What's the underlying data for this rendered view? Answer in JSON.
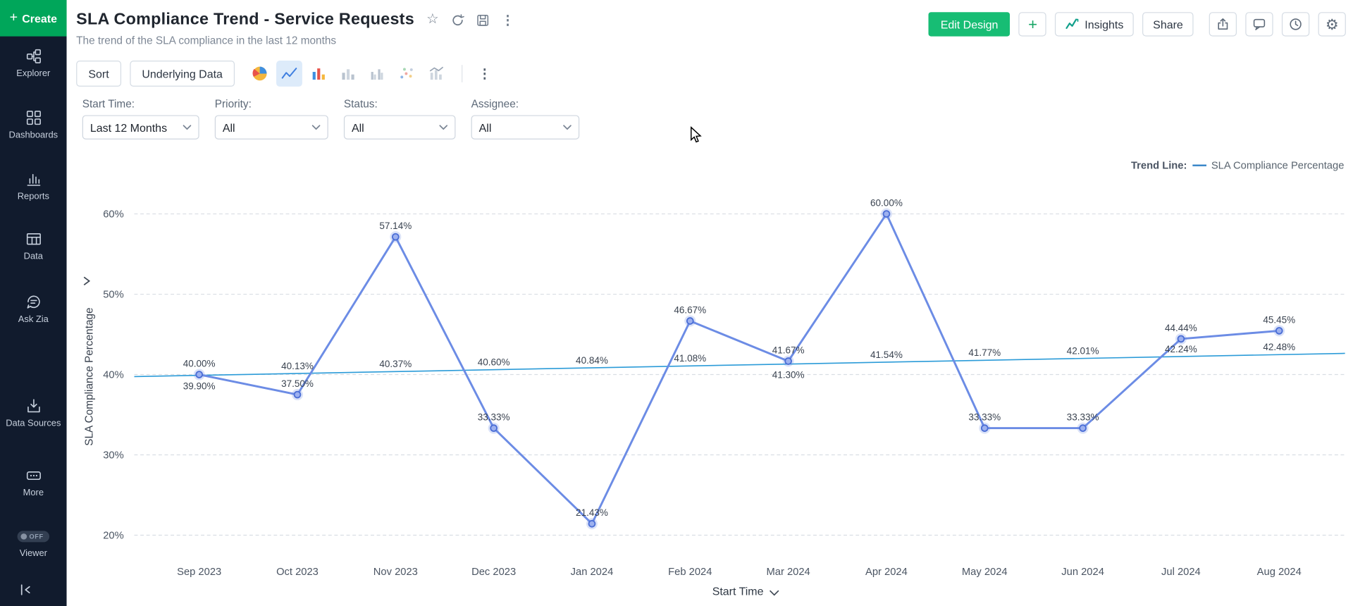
{
  "sidebar": {
    "create_label": "Create",
    "items": [
      {
        "label": "Explorer",
        "icon": "explorer-icon"
      },
      {
        "label": "Dashboards",
        "icon": "dashboards-icon"
      },
      {
        "label": "Reports",
        "icon": "reports-icon"
      },
      {
        "label": "Data",
        "icon": "data-icon"
      },
      {
        "label": "Ask Zia",
        "icon": "ask-zia-icon"
      },
      {
        "label": "Data Sources",
        "icon": "data-sources-icon"
      },
      {
        "label": "More",
        "icon": "more-icon"
      },
      {
        "label": "Viewer",
        "icon": "viewer-toggle",
        "badge": "OFF"
      }
    ]
  },
  "header": {
    "title": "SLA Compliance Trend - Service Requests",
    "subtitle": "The trend of the SLA compliance in the last 12 months"
  },
  "actions": {
    "edit_design": "Edit Design",
    "insights": "Insights",
    "share": "Share"
  },
  "toolbar": {
    "sort": "Sort",
    "underlying_data": "Underlying Data"
  },
  "filters": [
    {
      "label": "Start Time:",
      "value": "Last 12 Months"
    },
    {
      "label": "Priority:",
      "value": "All"
    },
    {
      "label": "Status:",
      "value": "All"
    },
    {
      "label": "Assignee:",
      "value": "All"
    }
  ],
  "legend": {
    "label": "Trend Line:",
    "entry": "SLA Compliance Percentage"
  },
  "chart_data": {
    "type": "line",
    "title": "SLA Compliance Trend - Service Requests",
    "xlabel": "Start Time",
    "ylabel": "SLA Compliance Percentage",
    "categories": [
      "Sep 2023",
      "Oct 2023",
      "Nov 2023",
      "Dec 2023",
      "Jan 2024",
      "Feb 2024",
      "Mar 2024",
      "Apr 2024",
      "May 2024",
      "Jun 2024",
      "Jul 2024",
      "Aug 2024"
    ],
    "yticks": [
      20,
      30,
      40,
      50,
      60
    ],
    "ylim": [
      20,
      60
    ],
    "grid": "dashed-horizontal",
    "legend_position": "top-right",
    "series": [
      {
        "name": "SLA Compliance Percentage",
        "color": "#6c8ce5",
        "values": [
          40.0,
          37.5,
          57.14,
          33.33,
          21.43,
          46.67,
          41.67,
          60.0,
          33.33,
          33.33,
          44.44,
          45.45
        ]
      },
      {
        "name": "Trend Line",
        "color": "#2b9bd8",
        "values": [
          39.9,
          40.13,
          40.37,
          40.6,
          40.84,
          41.08,
          41.3,
          41.54,
          41.77,
          42.01,
          42.24,
          42.48
        ],
        "label_side": [
          "below",
          "above",
          "above",
          "above",
          "above",
          "above",
          "below",
          "above",
          "above",
          "above",
          "above",
          "above"
        ]
      }
    ]
  }
}
